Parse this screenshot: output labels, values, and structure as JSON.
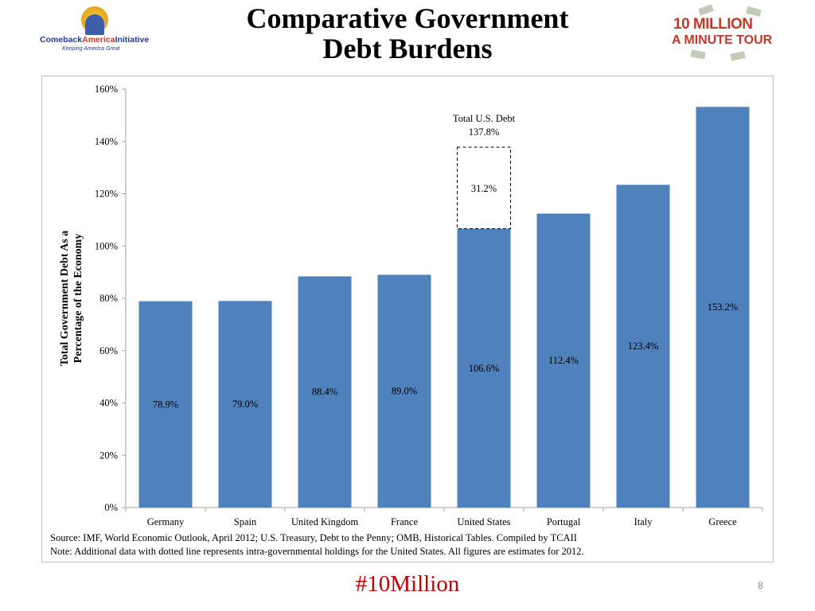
{
  "slide": {
    "title_line1": "Comparative Government",
    "title_line2": "Debt Burdens",
    "logo_left_brand_a": "Comeback",
    "logo_left_brand_b": "America",
    "logo_left_brand_c": "Initiative",
    "logo_left_tagline": "Keeping America Great",
    "logo_right_line1": "10 MILLION",
    "logo_right_line2": "A MINUTE TOUR",
    "source_note": "Source: IMF, World Economic Outlook, April 2012; U.S. Treasury, Debt to the Penny; OMB, Historical Tables. Compiled by TCAII",
    "data_note": "Note: Additional data with dotted line represents intra-governmental holdings for the United States. All figures are estimates for 2012.",
    "hashtag": "#10Million",
    "page_number": "8"
  },
  "colors": {
    "bar": "#4f81bd",
    "axis": "#a6a6a6",
    "hashtag": "#c00000",
    "brand_blue": "#1f3f8a",
    "brand_red": "#c0392b"
  },
  "chart_data": {
    "type": "bar",
    "categories": [
      "Germany",
      "Spain",
      "United Kingdom",
      "France",
      "United States",
      "Portugal",
      "Italy",
      "Greece"
    ],
    "values": [
      78.9,
      79.0,
      88.4,
      89.0,
      106.6,
      112.4,
      123.4,
      153.2
    ],
    "data_labels": [
      "78.9%",
      "79.0%",
      "88.4%",
      "89.0%",
      "106.6%",
      "112.4%",
      "123.4%",
      "153.2%"
    ],
    "ylabel_line1": "Total Government Debt As a",
    "ylabel_line2": "Percentage of the Economy",
    "ylim": [
      0,
      160
    ],
    "ytick_values": [
      0,
      20,
      40,
      60,
      80,
      100,
      120,
      140,
      160
    ],
    "ytick_labels": [
      "0%",
      "20%",
      "40%",
      "60%",
      "80%",
      "100%",
      "120%",
      "140%",
      "160%"
    ],
    "grid": false,
    "legend": "none",
    "stacked_addition": {
      "category": "United States",
      "value": 31.2,
      "label": "31.2%",
      "style": "dashed",
      "annotation_line1": "Total U.S. Debt",
      "annotation_line2": "137.8%"
    }
  }
}
